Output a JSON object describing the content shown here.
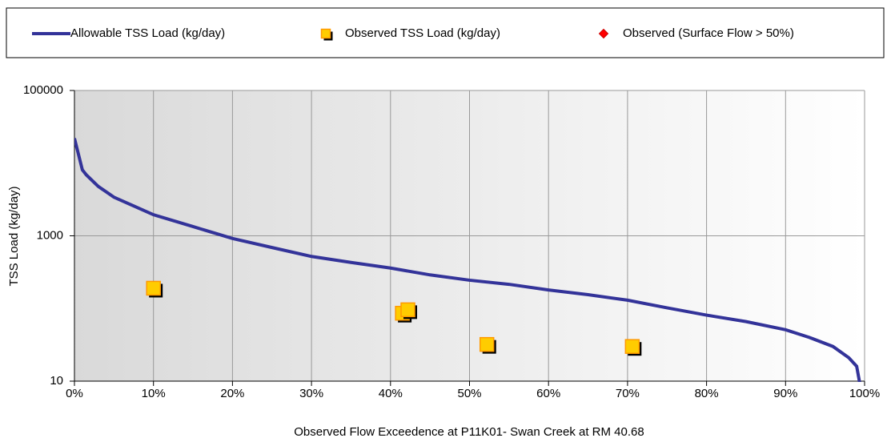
{
  "chart_data": {
    "type": "line",
    "xlabel": "Observed Flow Exceedence at P11K01- Swan Creek at RM 40.68",
    "ylabel": "TSS Load (kg/day)",
    "xlim": [
      0,
      100
    ],
    "xticks": [
      {
        "value": 0,
        "label": "0%"
      },
      {
        "value": 10,
        "label": "10%"
      },
      {
        "value": 20,
        "label": "20%"
      },
      {
        "value": 30,
        "label": "30%"
      },
      {
        "value": 40,
        "label": "40%"
      },
      {
        "value": 50,
        "label": "50%"
      },
      {
        "value": 60,
        "label": "60%"
      },
      {
        "value": 70,
        "label": "70%"
      },
      {
        "value": 80,
        "label": "80%"
      },
      {
        "value": 90,
        "label": "90%"
      },
      {
        "value": 100,
        "label": "100%"
      }
    ],
    "ylim": [
      10,
      100000
    ],
    "yticks": [
      10,
      1000,
      100000
    ],
    "ylog": true,
    "grid": true,
    "legend": "top",
    "series": [
      {
        "name": "Allowable TSS Load (kg/day)",
        "type": "line",
        "color": "#333399",
        "x": [
          0,
          1,
          1.5,
          3,
          5,
          10,
          15,
          20,
          25,
          30,
          35,
          40,
          45,
          50,
          55,
          60,
          65,
          70,
          75,
          80,
          85,
          90,
          93,
          96,
          98,
          99,
          99.6
        ],
        "values": [
          22000,
          8100,
          6900,
          4800,
          3400,
          1950,
          1340,
          920,
          690,
          520,
          430,
          360,
          290,
          245,
          215,
          180,
          155,
          130,
          102,
          81,
          66,
          51,
          40,
          30,
          21,
          16,
          7
        ]
      },
      {
        "name": "Observed TSS Load (kg/day)",
        "type": "scatter",
        "marker": "square",
        "color": "#ffcc00",
        "edgecolor": "#ff9900",
        "x": [
          10,
          41.5,
          42.2,
          52.2,
          70.6
        ],
        "values": [
          190,
          86,
          96,
          32,
          30
        ]
      },
      {
        "name": "Observed (Surface Flow > 50%)",
        "type": "scatter",
        "marker": "diamond",
        "color": "#ff0000",
        "edgecolor": "#cc0000",
        "x": [],
        "values": []
      }
    ]
  }
}
